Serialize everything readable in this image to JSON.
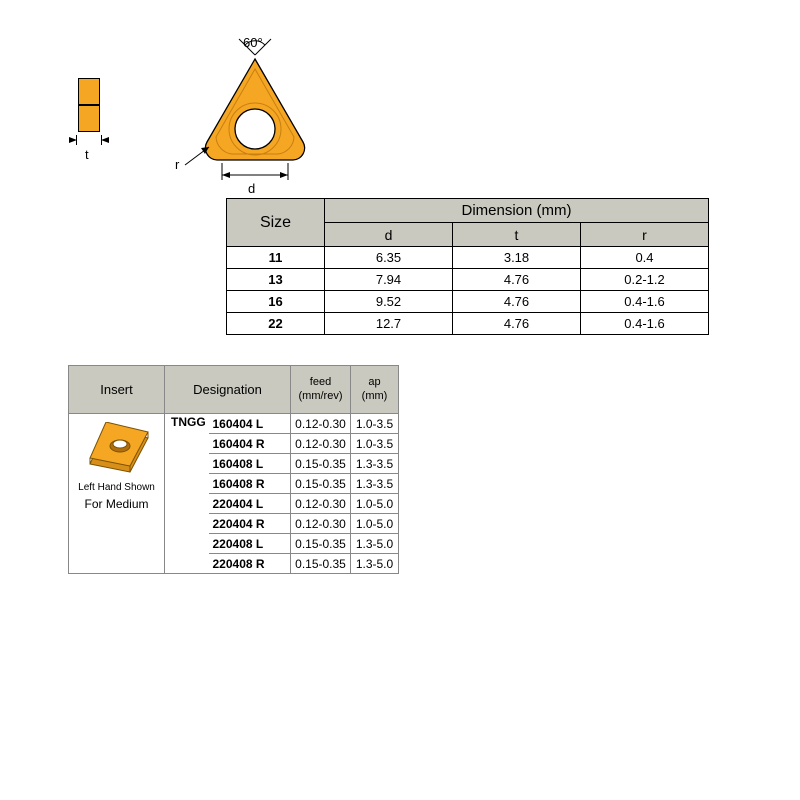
{
  "diagram": {
    "angle_label": "60°",
    "r_label": "r",
    "d_label": "d",
    "t_label": "t",
    "insert_fill": "#f5a623",
    "insert_stroke": "#000000"
  },
  "dim_table": {
    "h_size": "Size",
    "h_dim": "Dimension (mm)",
    "h_d": "d",
    "h_t": "t",
    "h_r": "r",
    "rows": [
      {
        "size": "11",
        "d": "6.35",
        "t": "3.18",
        "r": "0.4"
      },
      {
        "size": "13",
        "d": "7.94",
        "t": "4.76",
        "r": "0.2-1.2"
      },
      {
        "size": "16",
        "d": "9.52",
        "t": "4.76",
        "r": "0.4-1.6"
      },
      {
        "size": "22",
        "d": "12.7",
        "t": "4.76",
        "r": "0.4-1.6"
      }
    ]
  },
  "ins_table": {
    "h_insert": "Insert",
    "h_designation": "Designation",
    "h_feed": "feed\n(mm/rev)",
    "h_ap": "ap\n(mm)",
    "insert_caption1": "Left Hand Shown",
    "insert_caption2": "For Medium",
    "prefix": "TNGG",
    "rows": [
      {
        "code": "160404 L",
        "feed": "0.12-0.30",
        "ap": "1.0-3.5"
      },
      {
        "code": "160404 R",
        "feed": "0.12-0.30",
        "ap": "1.0-3.5"
      },
      {
        "code": "160408 L",
        "feed": "0.15-0.35",
        "ap": "1.3-3.5"
      },
      {
        "code": "160408 R",
        "feed": "0.15-0.35",
        "ap": "1.3-3.5"
      },
      {
        "code": "220404 L",
        "feed": "0.12-0.30",
        "ap": "1.0-5.0"
      },
      {
        "code": "220404 R",
        "feed": "0.12-0.30",
        "ap": "1.0-5.0"
      },
      {
        "code": "220408 L",
        "feed": "0.15-0.35",
        "ap": "1.3-5.0"
      },
      {
        "code": "220408 R",
        "feed": "0.15-0.35",
        "ap": "1.3-5.0"
      }
    ]
  },
  "colors": {
    "header_bg": "#c9c9bf",
    "gold": "#f5a623",
    "gold_dark": "#c77f12"
  }
}
